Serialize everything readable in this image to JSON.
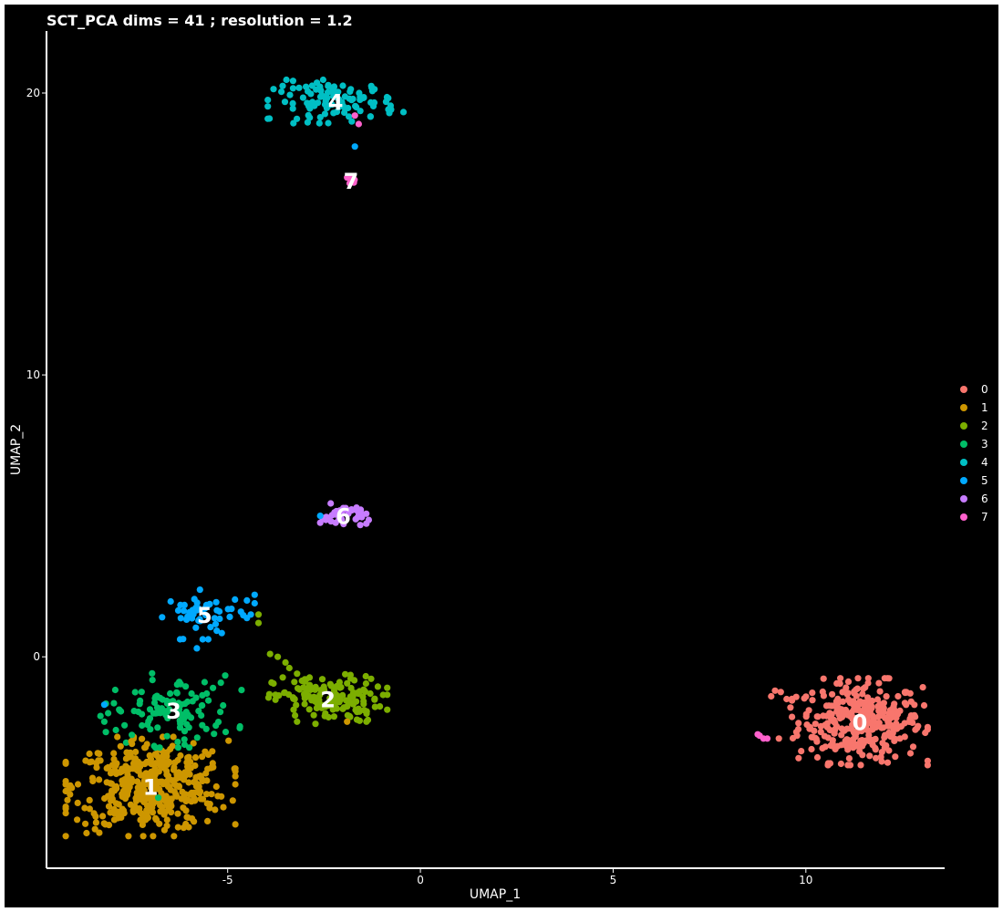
{
  "chart_data": {
    "type": "scatter",
    "title": "SCT_PCA dims =  41 ; resolution = 1.2",
    "xlabel": "UMAP_1",
    "ylabel": "UMAP_2",
    "xlim": [
      -9.7,
      13.6
    ],
    "ylim": [
      -7.5,
      22.2
    ],
    "xticks": [
      -5,
      0,
      5,
      10
    ],
    "yticks": [
      0,
      10,
      20
    ],
    "grid": false,
    "legend_position": "right",
    "legend_labels": [
      "0",
      "1",
      "2",
      "3",
      "4",
      "5",
      "6",
      "7"
    ],
    "colors": [
      "#F8766D",
      "#CD9600",
      "#7CAE00",
      "#00BE67",
      "#00BFC4",
      "#00A9FF",
      "#C77CFF",
      "#FF61CC"
    ],
    "clusters": [
      {
        "label": "0",
        "center": [
          11.4,
          -2.3
        ],
        "spread": [
          0.8,
          0.7
        ],
        "n": 330
      },
      {
        "label": "1",
        "center": [
          -7.0,
          -4.6
        ],
        "spread": [
          1.0,
          0.8
        ],
        "n": 420
      },
      {
        "label": "2",
        "center": [
          -2.4,
          -1.5
        ],
        "spread": [
          0.7,
          0.4
        ],
        "n": 150
      },
      {
        "label": "3",
        "center": [
          -6.4,
          -1.9
        ],
        "spread": [
          0.8,
          0.6
        ],
        "n": 110
      },
      {
        "label": "4",
        "center": [
          -2.2,
          19.7
        ],
        "spread": [
          0.8,
          0.35
        ],
        "n": 110
      },
      {
        "label": "5",
        "center": [
          -5.6,
          1.5
        ],
        "spread": [
          0.5,
          0.4
        ],
        "n": 50
      },
      {
        "label": "6",
        "center": [
          -2.0,
          5.0
        ],
        "spread": [
          0.3,
          0.2
        ],
        "n": 40
      },
      {
        "label": "7",
        "center": [
          -1.8,
          16.9
        ],
        "spread": [
          0.1,
          0.1
        ],
        "n": 6
      }
    ],
    "extra_points": [
      {
        "cluster": 0,
        "x": 9.2,
        "y": -1.2
      },
      {
        "cluster": 0,
        "x": 9.5,
        "y": -1.5
      },
      {
        "cluster": 0,
        "x": 9.6,
        "y": -1.8
      },
      {
        "cluster": 0,
        "x": 9.1,
        "y": -1.4
      },
      {
        "cluster": 0,
        "x": 9.35,
        "y": -1.25
      },
      {
        "cluster": 1,
        "x": -7.5,
        "y": -3.0
      },
      {
        "cluster": 1,
        "x": -1.9,
        "y": -2.3
      },
      {
        "cluster": 2,
        "x": -3.9,
        "y": 0.1
      },
      {
        "cluster": 2,
        "x": -3.7,
        "y": 0.0
      },
      {
        "cluster": 2,
        "x": -3.5,
        "y": -0.2
      },
      {
        "cluster": 2,
        "x": -3.4,
        "y": -0.4
      },
      {
        "cluster": 2,
        "x": -3.2,
        "y": -0.6
      },
      {
        "cluster": 2,
        "x": -3.0,
        "y": -0.8
      },
      {
        "cluster": 2,
        "x": -3.2,
        "y": -2.3
      },
      {
        "cluster": 2,
        "x": -1.4,
        "y": -2.3
      },
      {
        "cluster": 2,
        "x": -4.2,
        "y": 1.5
      },
      {
        "cluster": 2,
        "x": -4.2,
        "y": 1.2
      },
      {
        "cluster": 3,
        "x": -8.3,
        "y": -2.1
      },
      {
        "cluster": 3,
        "x": -8.2,
        "y": -2.3
      },
      {
        "cluster": 3,
        "x": -8.1,
        "y": -2.0
      },
      {
        "cluster": 3,
        "x": -7.8,
        "y": -1.9
      },
      {
        "cluster": 3,
        "x": -7.9,
        "y": -2.6
      },
      {
        "cluster": 3,
        "x": -6.8,
        "y": -5.0
      },
      {
        "cluster": 5,
        "x": -8.2,
        "y": -1.7
      },
      {
        "cluster": 5,
        "x": -5.8,
        "y": 0.3
      },
      {
        "cluster": 5,
        "x": -4.9,
        "y": 1.7
      },
      {
        "cluster": 5,
        "x": -4.5,
        "y": 2.0
      },
      {
        "cluster": 5,
        "x": -4.3,
        "y": 2.2
      },
      {
        "cluster": 5,
        "x": -4.3,
        "y": 1.9
      },
      {
        "cluster": 5,
        "x": -4.4,
        "y": 1.5
      },
      {
        "cluster": 5,
        "x": -2.6,
        "y": 5.0
      },
      {
        "cluster": 5,
        "x": -1.7,
        "y": 18.1
      },
      {
        "cluster": 7,
        "x": -1.6,
        "y": 18.9
      },
      {
        "cluster": 7,
        "x": -1.7,
        "y": 19.2
      },
      {
        "cluster": 7,
        "x": 8.8,
        "y": -2.8
      },
      {
        "cluster": 7,
        "x": 8.9,
        "y": -2.9
      },
      {
        "cluster": 7,
        "x": 9.0,
        "y": -2.9
      },
      {
        "cluster": 7,
        "x": 8.75,
        "y": -2.75
      },
      {
        "cluster": 0,
        "x": 9.3,
        "y": -2.9
      }
    ]
  }
}
